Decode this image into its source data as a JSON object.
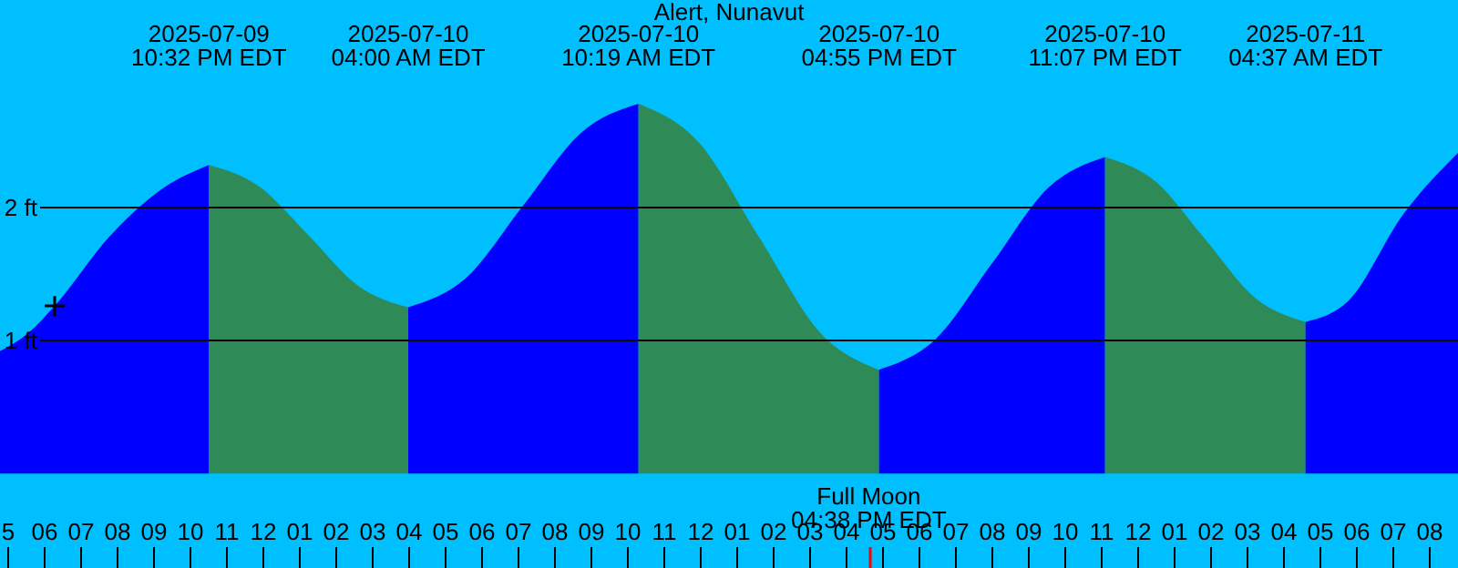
{
  "chart_data": {
    "type": "area",
    "title": "Alert, Nunavut",
    "xlim": [
      "2025-07-09T16:48",
      "2025-07-11T08:48"
    ],
    "ylim": [
      -0.71,
      3.56
    ],
    "yticks": [
      {
        "value": 1,
        "label": "1 ft"
      },
      {
        "value": 2,
        "label": "2 ft"
      }
    ],
    "grid": "y",
    "xticks": [
      {
        "value": "2025-07-09T17:00",
        "label": "5"
      },
      {
        "value": "2025-07-09T18:00",
        "label": "06"
      },
      {
        "value": "2025-07-09T19:00",
        "label": "07"
      },
      {
        "value": "2025-07-09T20:00",
        "label": "08"
      },
      {
        "value": "2025-07-09T21:00",
        "label": "09"
      },
      {
        "value": "2025-07-09T22:00",
        "label": "10"
      },
      {
        "value": "2025-07-09T23:00",
        "label": "11"
      },
      {
        "value": "2025-07-10T00:00",
        "label": "12"
      },
      {
        "value": "2025-07-10T01:00",
        "label": "01"
      },
      {
        "value": "2025-07-10T02:00",
        "label": "02"
      },
      {
        "value": "2025-07-10T03:00",
        "label": "03"
      },
      {
        "value": "2025-07-10T04:00",
        "label": "04"
      },
      {
        "value": "2025-07-10T05:00",
        "label": "05"
      },
      {
        "value": "2025-07-10T06:00",
        "label": "06"
      },
      {
        "value": "2025-07-10T07:00",
        "label": "07"
      },
      {
        "value": "2025-07-10T08:00",
        "label": "08"
      },
      {
        "value": "2025-07-10T09:00",
        "label": "09"
      },
      {
        "value": "2025-07-10T10:00",
        "label": "10"
      },
      {
        "value": "2025-07-10T11:00",
        "label": "11"
      },
      {
        "value": "2025-07-10T12:00",
        "label": "12"
      },
      {
        "value": "2025-07-10T13:00",
        "label": "01"
      },
      {
        "value": "2025-07-10T14:00",
        "label": "02"
      },
      {
        "value": "2025-07-10T15:00",
        "label": "03"
      },
      {
        "value": "2025-07-10T16:00",
        "label": "04"
      },
      {
        "value": "2025-07-10T16:38",
        "label": null
      },
      {
        "value": "2025-07-10T17:00",
        "label": "05"
      },
      {
        "value": "2025-07-10T18:00",
        "label": "06"
      },
      {
        "value": "2025-07-10T19:00",
        "label": "07"
      },
      {
        "value": "2025-07-10T20:00",
        "label": "08"
      },
      {
        "value": "2025-07-10T21:00",
        "label": "09"
      },
      {
        "value": "2025-07-10T22:00",
        "label": "10"
      },
      {
        "value": "2025-07-10T23:00",
        "label": "11"
      },
      {
        "value": "2025-07-11T00:00",
        "label": "12"
      },
      {
        "value": "2025-07-11T01:00",
        "label": "01"
      },
      {
        "value": "2025-07-11T02:00",
        "label": "02"
      },
      {
        "value": "2025-07-11T03:00",
        "label": "03"
      },
      {
        "value": "2025-07-11T04:00",
        "label": "04"
      },
      {
        "value": "2025-07-11T05:00",
        "label": "05"
      },
      {
        "value": "2025-07-11T06:00",
        "label": "06"
      },
      {
        "value": "2025-07-11T07:00",
        "label": "07"
      },
      {
        "value": "2025-07-11T08:00",
        "label": "08"
      }
    ],
    "series": [
      {
        "type": "area",
        "color": "#0000ff",
        "x": [
          "2025-07-09T16:48",
          "2025-07-09T17:33",
          "2025-07-09T18:18",
          "2025-07-09T19:48",
          "2025-07-09T21:18",
          "2025-07-09T22:32"
        ],
        "values": [
          0.92,
          1.05,
          1.26,
          1.78,
          2.15,
          2.32
        ]
      },
      {
        "type": "area",
        "color": "#2e8b57",
        "x": [
          "2025-07-09T22:32",
          "2025-07-09T23:54",
          "2025-07-10T01:16",
          "2025-07-10T02:38",
          "2025-07-10T04:00"
        ],
        "values": [
          2.32,
          2.16,
          1.79,
          1.41,
          1.25
        ]
      },
      {
        "type": "area",
        "color": "#0000ff",
        "x": [
          "2025-07-10T04:00",
          "2025-07-10T05:35",
          "2025-07-10T07:10",
          "2025-07-10T08:44",
          "2025-07-10T10:19"
        ],
        "values": [
          1.25,
          1.47,
          2.02,
          2.56,
          2.78
        ]
      },
      {
        "type": "area",
        "color": "#2e8b57",
        "x": [
          "2025-07-10T10:19",
          "2025-07-10T11:58",
          "2025-07-10T13:37",
          "2025-07-10T15:16",
          "2025-07-10T16:55"
        ],
        "values": [
          2.78,
          2.49,
          1.78,
          1.07,
          0.78
        ]
      },
      {
        "type": "area",
        "color": "#0000ff",
        "x": [
          "2025-07-10T16:55",
          "2025-07-10T18:28",
          "2025-07-10T20:01",
          "2025-07-10T21:34",
          "2025-07-10T23:07"
        ],
        "values": [
          0.78,
          1.01,
          1.58,
          2.15,
          2.38
        ]
      },
      {
        "type": "area",
        "color": "#2e8b57",
        "x": [
          "2025-07-10T23:07",
          "2025-07-11T00:29",
          "2025-07-11T01:52",
          "2025-07-11T03:14",
          "2025-07-11T04:37"
        ],
        "values": [
          2.38,
          2.2,
          1.76,
          1.32,
          1.14
        ]
      },
      {
        "type": "area",
        "color": "#0000ff",
        "x": [
          "2025-07-11T04:37",
          "2025-07-11T05:48",
          "2025-07-11T07:18",
          "2025-07-11T08:48"
        ],
        "values": [
          1.14,
          1.3,
          1.95,
          2.41
        ]
      },
      {
        "type": "scatter",
        "marker": "cross",
        "color": "#000000",
        "x": [
          "2025-07-09T18:18"
        ],
        "values": [
          1.26
        ]
      }
    ],
    "annotations": [
      "2025-07-09\n10:32 PM EDT",
      "2025-07-10\n04:00 AM EDT",
      "2025-07-10\n10:19 AM EDT",
      "2025-07-10\n04:55 PM EDT",
      "2025-07-10\n11:07 PM EDT",
      "2025-07-11\n04:37 AM EDT",
      "Full Moon\n04:38 PM EDT"
    ]
  }
}
